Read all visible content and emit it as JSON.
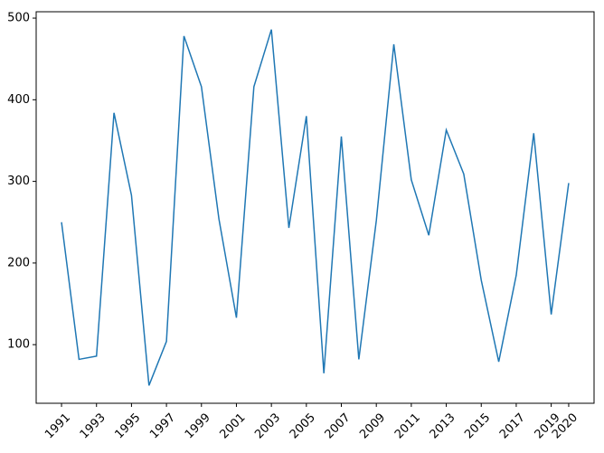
{
  "chart_data": {
    "type": "line",
    "x": [
      1991,
      1992,
      1993,
      1994,
      1995,
      1996,
      1997,
      1998,
      1999,
      2000,
      2001,
      2002,
      2003,
      2004,
      2005,
      2006,
      2007,
      2008,
      2009,
      2010,
      2011,
      2012,
      2013,
      2014,
      2015,
      2016,
      2017,
      2018,
      2019,
      2020
    ],
    "series": [
      {
        "color": "#1f77b4",
        "values": [
          250,
          82,
          86,
          384,
          283,
          50,
          104,
          478,
          416,
          254,
          133,
          416,
          486,
          243,
          380,
          65,
          355,
          82,
          252,
          468,
          302,
          234,
          363,
          309,
          179,
          79,
          185,
          359,
          137,
          298
        ]
      }
    ],
    "xlim": [
      1989.55,
      2021.45
    ],
    "xticks": [
      1991,
      1993,
      1995,
      1997,
      1999,
      2001,
      2003,
      2005,
      2007,
      2009,
      2011,
      2013,
      2015,
      2017,
      2019,
      2020
    ],
    "ylim": [
      28.2,
      507.8
    ],
    "yticks": [
      100,
      200,
      300,
      400,
      500
    ]
  }
}
